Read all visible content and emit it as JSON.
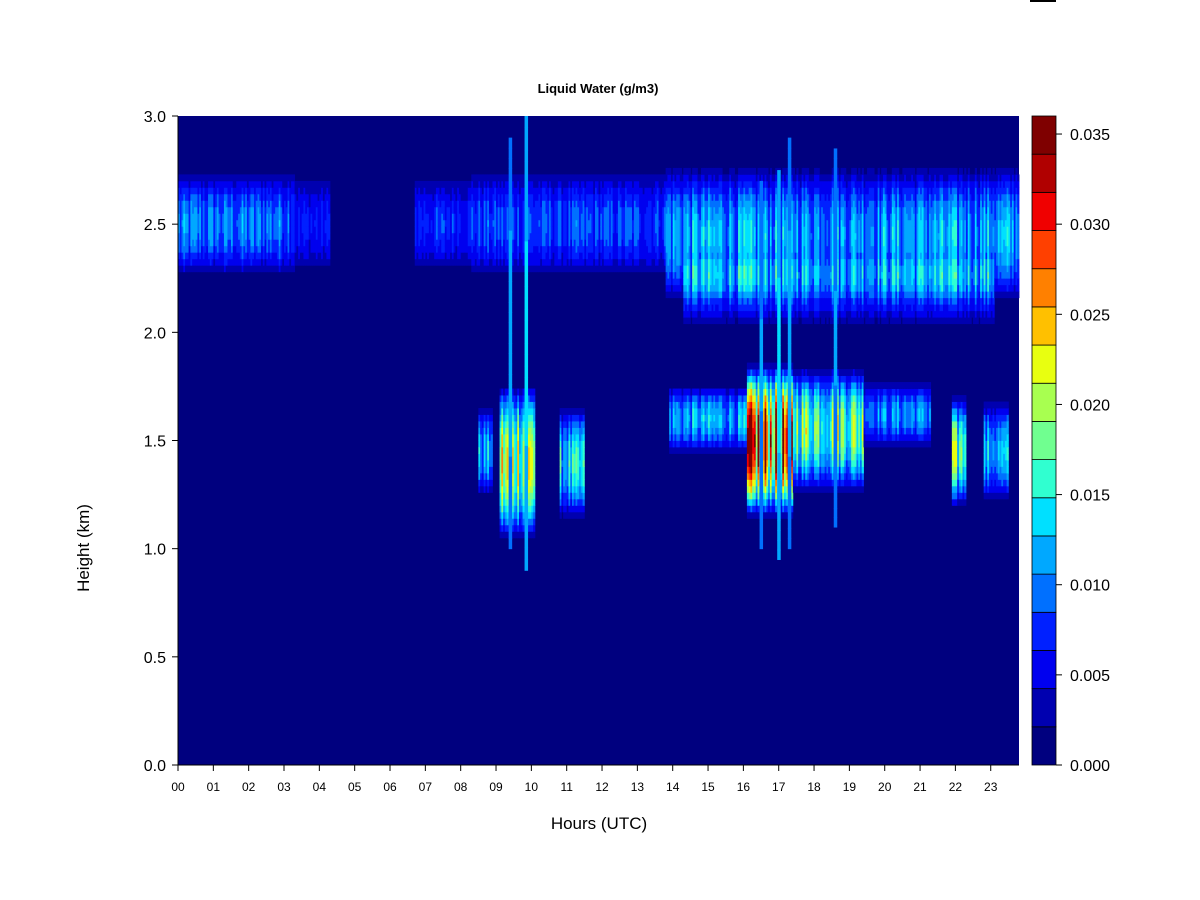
{
  "chart_data": {
    "type": "heatmap",
    "title": "Liquid Water (g/m3)",
    "xlabel": "Hours (UTC)",
    "ylabel": "Height (km)",
    "x_ticks": [
      "00",
      "01",
      "02",
      "03",
      "04",
      "05",
      "06",
      "07",
      "08",
      "09",
      "10",
      "11",
      "12",
      "13",
      "14",
      "15",
      "16",
      "17",
      "18",
      "19",
      "20",
      "21",
      "22",
      "23"
    ],
    "xlim": [
      0,
      23.8
    ],
    "y_ticks": [
      0.0,
      0.5,
      1.0,
      1.5,
      2.0,
      2.5,
      3.0
    ],
    "ylim": [
      0,
      3.0
    ],
    "grid": false,
    "colorbar": {
      "levels": [
        0.0,
        0.0025,
        0.005,
        0.0075,
        0.01,
        0.0125,
        0.015,
        0.0175,
        0.02,
        0.0225,
        0.025,
        0.0275,
        0.03,
        0.0325,
        0.0345
      ],
      "colors": [
        "#00007f",
        "#0000b0",
        "#0000ef",
        "#0020ff",
        "#0070ff",
        "#00a8ff",
        "#00e0ff",
        "#30ffd0",
        "#70ff90",
        "#a8ff50",
        "#e8ff10",
        "#ffc000",
        "#ff8000",
        "#ff4000",
        "#f00000",
        "#b00000",
        "#7f0000"
      ],
      "tick_values": [
        0.0,
        0.005,
        0.01,
        0.015,
        0.02,
        0.025,
        0.03,
        0.035
      ],
      "tick_labels": [
        "0.000",
        "0.005",
        "0.010",
        "0.015",
        "0.020",
        "0.025",
        "0.030",
        "0.035"
      ]
    },
    "layers": [
      {
        "t_start": 0.0,
        "t_end": 3.3,
        "z_center": 2.5,
        "z_half": 0.23,
        "peak": 0.009
      },
      {
        "t_start": 3.3,
        "t_end": 4.3,
        "z_center": 2.5,
        "z_half": 0.2,
        "peak": 0.005
      },
      {
        "t_start": 6.7,
        "t_end": 8.3,
        "z_center": 2.5,
        "z_half": 0.2,
        "peak": 0.006
      },
      {
        "t_start": 8.3,
        "t_end": 13.8,
        "z_center": 2.5,
        "z_half": 0.23,
        "peak": 0.007
      },
      {
        "t_start": 13.8,
        "t_end": 23.8,
        "z_center": 2.45,
        "z_half": 0.3,
        "peak": 0.011
      },
      {
        "t_start": 14.3,
        "t_end": 23.1,
        "z_center": 2.2,
        "z_half": 0.15,
        "peak": 0.007
      },
      {
        "t_start": 8.5,
        "t_end": 8.9,
        "z_center": 1.45,
        "z_half": 0.2,
        "peak": 0.011
      },
      {
        "t_start": 9.1,
        "t_end": 10.1,
        "z_center": 1.4,
        "z_half": 0.35,
        "peak": 0.022
      },
      {
        "t_start": 10.8,
        "t_end": 11.5,
        "z_center": 1.4,
        "z_half": 0.25,
        "peak": 0.013
      },
      {
        "t_start": 13.9,
        "t_end": 16.1,
        "z_center": 1.6,
        "z_half": 0.15,
        "peak": 0.011
      },
      {
        "t_start": 16.1,
        "t_end": 17.4,
        "z_center": 1.5,
        "z_half": 0.35,
        "peak": 0.03
      },
      {
        "t_start": 17.4,
        "t_end": 19.4,
        "z_center": 1.55,
        "z_half": 0.28,
        "peak": 0.019
      },
      {
        "t_start": 19.4,
        "t_end": 21.3,
        "z_center": 1.62,
        "z_half": 0.14,
        "peak": 0.01
      },
      {
        "t_start": 21.9,
        "t_end": 22.3,
        "z_center": 1.45,
        "z_half": 0.25,
        "peak": 0.017
      },
      {
        "t_start": 22.8,
        "t_end": 23.5,
        "z_center": 1.45,
        "z_half": 0.22,
        "peak": 0.011
      }
    ],
    "spikes": [
      {
        "t": 9.85,
        "z_low": 0.9,
        "z_high": 3.0,
        "peak": 0.012
      },
      {
        "t": 9.4,
        "z_low": 1.0,
        "z_high": 2.9,
        "peak": 0.01
      },
      {
        "t": 17.0,
        "z_low": 0.95,
        "z_high": 2.75,
        "peak": 0.012
      },
      {
        "t": 17.3,
        "z_low": 1.0,
        "z_high": 2.9,
        "peak": 0.01
      },
      {
        "t": 16.5,
        "z_low": 1.0,
        "z_high": 2.7,
        "peak": 0.009
      },
      {
        "t": 18.6,
        "z_low": 1.1,
        "z_high": 2.85,
        "peak": 0.009
      }
    ]
  }
}
